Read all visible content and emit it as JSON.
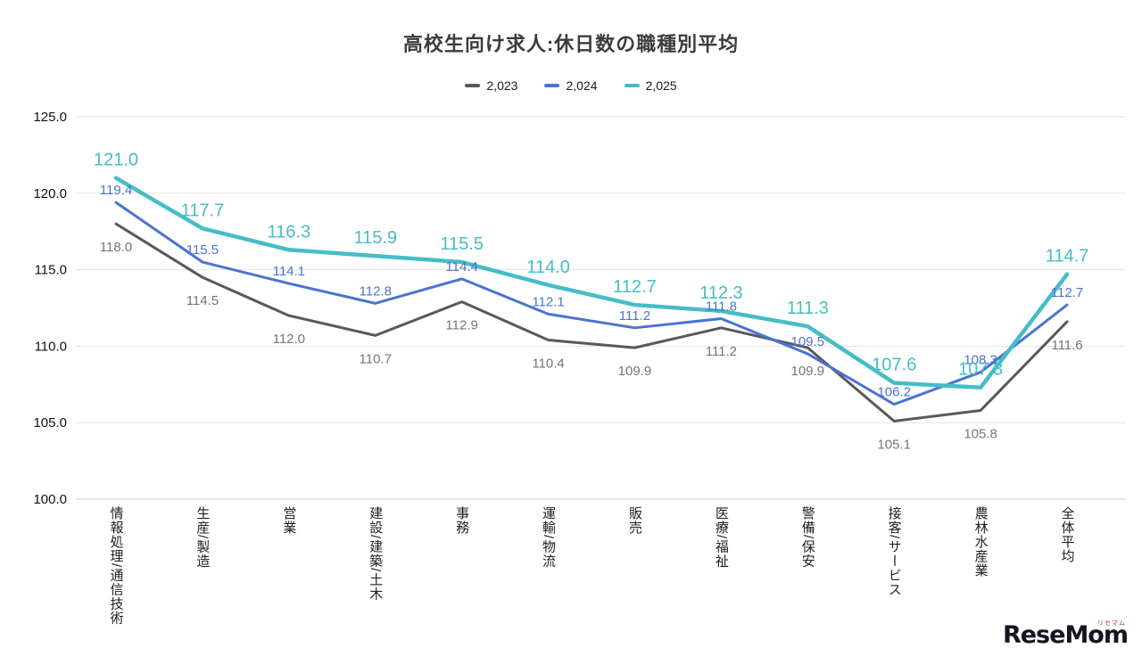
{
  "chart_data": {
    "type": "line",
    "title": "高校生向け求人:休日数の職種別平均",
    "categories": [
      "情報処理/通信技術",
      "生産/製造",
      "営業",
      "建設/建築/土木",
      "事務",
      "運輸/物流",
      "販売",
      "医療/福祉",
      "警備/保安",
      "接客/サービス",
      "農林水産業",
      "全体平均"
    ],
    "series": [
      {
        "name": "2,023",
        "color": "#58595b",
        "label_color": "#757575",
        "values": [
          118.0,
          114.5,
          112.0,
          110.7,
          112.9,
          110.4,
          109.9,
          111.2,
          109.9,
          105.1,
          105.8,
          111.6
        ]
      },
      {
        "name": "2,024",
        "color": "#4a73d1",
        "label_color": "#4a73d1",
        "values": [
          119.4,
          115.5,
          114.1,
          112.8,
          114.4,
          112.1,
          111.2,
          111.8,
          109.5,
          106.2,
          108.3,
          112.7
        ]
      },
      {
        "name": "2,025",
        "color": "#46bdc6",
        "label_color": "#46bdc6",
        "values": [
          121.0,
          117.7,
          116.3,
          115.9,
          115.5,
          114.0,
          112.7,
          112.3,
          111.3,
          107.6,
          107.3,
          114.7
        ]
      }
    ],
    "y_ticks": [
      125.0,
      120.0,
      115.0,
      110.0,
      105.0,
      100.0
    ],
    "ylim": [
      100,
      125
    ],
    "grid": true,
    "legend_position": "top"
  },
  "logo": {
    "name": "ReseMom",
    "ruby": "リセマム"
  }
}
